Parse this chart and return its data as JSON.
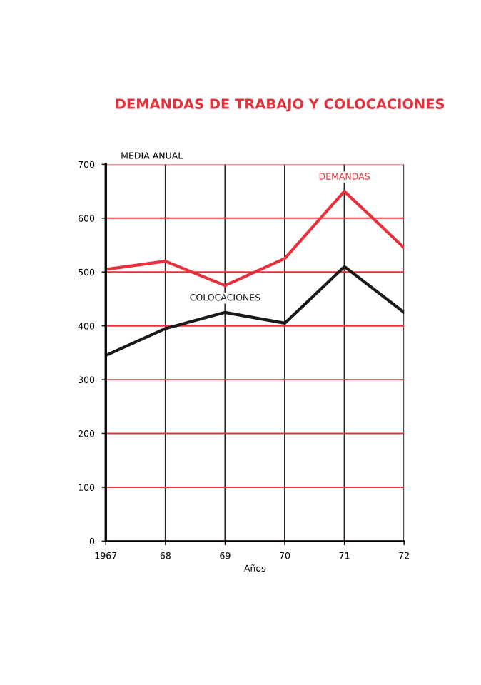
{
  "chart_data": {
    "type": "line",
    "title": "DEMANDAS DE TRABAJO Y COLOCACIONES",
    "ylabel": "MEDIA ANUAL",
    "xlabel": "Años",
    "categories": [
      "1967",
      "68",
      "69",
      "70",
      "71",
      "72"
    ],
    "series": [
      {
        "name": "DEMANDAS",
        "color": "#e8303c",
        "values": [
          505,
          520,
          475,
          525,
          650,
          545
        ]
      },
      {
        "name": "COLOCACIONES",
        "color": "#1a1a1a",
        "values": [
          345,
          395,
          425,
          405,
          510,
          425
        ]
      }
    ],
    "ylim": [
      0,
      700
    ],
    "yticks": [
      0,
      100,
      200,
      300,
      400,
      500,
      600,
      700
    ],
    "grid": true,
    "marker": "none",
    "line_style": "solid",
    "legend": false
  }
}
